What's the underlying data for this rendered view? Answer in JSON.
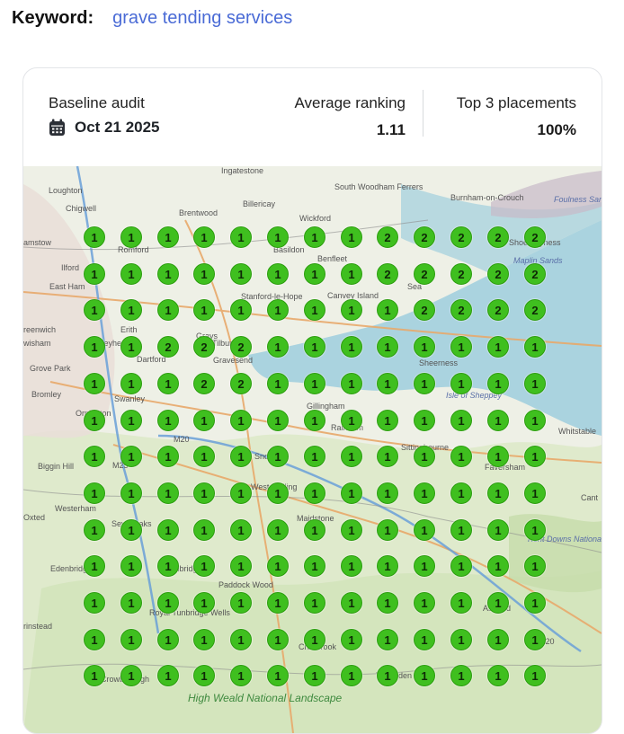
{
  "keyword": {
    "label": "Keyword:",
    "value": "grave tending services"
  },
  "stats": {
    "baseline_title": "Baseline audit",
    "baseline_date": "Oct 21 2025",
    "avg_title": "Average ranking",
    "avg_value": "1.11",
    "top3_title": "Top 3 placements",
    "top3_value": "100%"
  },
  "map": {
    "places": [
      {
        "name": "Ingatestone",
        "style": "normal"
      },
      {
        "name": "Loughton",
        "style": "normal"
      },
      {
        "name": "South Woodham Ferrers",
        "style": "normal"
      },
      {
        "name": "Burnham-on-Crouch",
        "style": "normal"
      },
      {
        "name": "Foulness Sands",
        "style": "blue"
      },
      {
        "name": "Chigwell",
        "style": "normal"
      },
      {
        "name": "Brentwood",
        "style": "normal"
      },
      {
        "name": "Billericay",
        "style": "normal"
      },
      {
        "name": "Wickford",
        "style": "normal"
      },
      {
        "name": "amstow",
        "style": "normal"
      },
      {
        "name": "Romford",
        "style": "normal"
      },
      {
        "name": "Basildon",
        "style": "normal"
      },
      {
        "name": "Benfleet",
        "style": "normal"
      },
      {
        "name": "Shoeburyness",
        "style": "normal"
      },
      {
        "name": "Ilford",
        "style": "normal"
      },
      {
        "name": "East Ham",
        "style": "normal"
      },
      {
        "name": "Sea",
        "style": "normal"
      },
      {
        "name": "Maplin Sands",
        "style": "blue"
      },
      {
        "name": "Stanford-le-Hope",
        "style": "normal"
      },
      {
        "name": "Canvey Island",
        "style": "normal"
      },
      {
        "name": "reenwich",
        "style": "normal"
      },
      {
        "name": "Erith",
        "style": "normal"
      },
      {
        "name": "Grays",
        "style": "normal"
      },
      {
        "name": "wisham",
        "style": "normal"
      },
      {
        "name": "Bexleyheath",
        "style": "normal"
      },
      {
        "name": "Dartford",
        "style": "normal"
      },
      {
        "name": "Tilbury",
        "style": "normal"
      },
      {
        "name": "Gravesend",
        "style": "normal"
      },
      {
        "name": "Grove Park",
        "style": "normal"
      },
      {
        "name": "Sheerness",
        "style": "normal"
      },
      {
        "name": "Bromley",
        "style": "normal"
      },
      {
        "name": "Swanley",
        "style": "normal"
      },
      {
        "name": "Isle of Sheppey",
        "style": "blue"
      },
      {
        "name": "Orpington",
        "style": "normal"
      },
      {
        "name": "Gillingham",
        "style": "normal"
      },
      {
        "name": "Rainham",
        "style": "normal"
      },
      {
        "name": "Whitstable",
        "style": "normal"
      },
      {
        "name": "M20",
        "style": "normal"
      },
      {
        "name": "Biggin Hill",
        "style": "normal"
      },
      {
        "name": "M25",
        "style": "normal"
      },
      {
        "name": "Snodland",
        "style": "normal"
      },
      {
        "name": "Sittingbourne",
        "style": "normal"
      },
      {
        "name": "Faversham",
        "style": "normal"
      },
      {
        "name": "Westerham",
        "style": "normal"
      },
      {
        "name": "Sevenoaks",
        "style": "normal"
      },
      {
        "name": "West Malling",
        "style": "normal"
      },
      {
        "name": "Maidstone",
        "style": "normal"
      },
      {
        "name": "Cant",
        "style": "normal"
      },
      {
        "name": "Oxted",
        "style": "normal"
      },
      {
        "name": "Kent Downs National Landscape",
        "style": "blue"
      },
      {
        "name": "Edenbridge",
        "style": "normal"
      },
      {
        "name": "Tonbridge",
        "style": "normal"
      },
      {
        "name": "Paddock Wood",
        "style": "normal"
      },
      {
        "name": "Royal Tunbridge Wells",
        "style": "normal"
      },
      {
        "name": "Ashford",
        "style": "normal"
      },
      {
        "name": "rinstead",
        "style": "normal"
      },
      {
        "name": "Cranbrook",
        "style": "normal"
      },
      {
        "name": "M20",
        "style": "normal"
      },
      {
        "name": "Crowborough",
        "style": "normal"
      },
      {
        "name": "High Weald National Landscape",
        "style": "green"
      },
      {
        "name": "Tenterden",
        "style": "normal"
      }
    ],
    "pin_grid": [
      [
        1,
        1,
        1,
        1,
        1,
        1,
        1,
        1,
        2,
        2,
        2,
        2,
        2
      ],
      [
        1,
        1,
        1,
        1,
        1,
        1,
        1,
        1,
        2,
        2,
        2,
        2,
        2
      ],
      [
        1,
        1,
        1,
        1,
        1,
        1,
        1,
        1,
        1,
        2,
        2,
        2,
        2
      ],
      [
        1,
        1,
        2,
        2,
        2,
        1,
        1,
        1,
        1,
        1,
        1,
        1,
        1
      ],
      [
        1,
        1,
        1,
        2,
        2,
        1,
        1,
        1,
        1,
        1,
        1,
        1,
        1
      ],
      [
        1,
        1,
        1,
        1,
        1,
        1,
        1,
        1,
        1,
        1,
        1,
        1,
        1
      ],
      [
        1,
        1,
        1,
        1,
        1,
        1,
        1,
        1,
        1,
        1,
        1,
        1,
        1
      ],
      [
        1,
        1,
        1,
        1,
        1,
        1,
        1,
        1,
        1,
        1,
        1,
        1,
        1
      ],
      [
        1,
        1,
        1,
        1,
        1,
        1,
        1,
        1,
        1,
        1,
        1,
        1,
        1
      ],
      [
        1,
        1,
        1,
        1,
        1,
        1,
        1,
        1,
        1,
        1,
        1,
        1,
        1
      ],
      [
        1,
        1,
        1,
        1,
        1,
        1,
        1,
        1,
        1,
        1,
        1,
        1,
        1
      ],
      [
        1,
        1,
        1,
        1,
        1,
        1,
        1,
        1,
        1,
        1,
        1,
        1,
        1
      ],
      [
        1,
        1,
        1,
        1,
        1,
        1,
        1,
        1,
        1,
        1,
        1,
        1,
        1
      ]
    ],
    "pin_color": "#3fbf1f"
  }
}
